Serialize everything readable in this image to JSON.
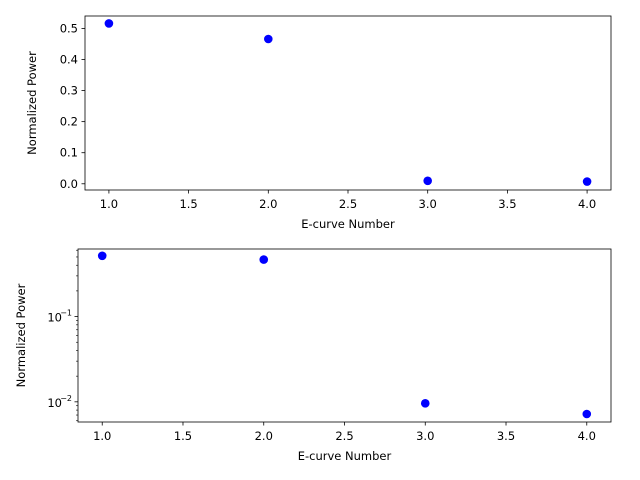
{
  "chart_data": [
    {
      "type": "scatter",
      "scale": "linear",
      "xlabel": "E-curve Number",
      "ylabel": "Normalized Power",
      "xlim": [
        0.85,
        4.15
      ],
      "ylim": [
        -0.02,
        0.54
      ],
      "x_ticks": [
        1.0,
        1.5,
        2.0,
        2.5,
        3.0,
        3.5,
        4.0
      ],
      "x_tick_labels": [
        "1.0",
        "1.5",
        "2.0",
        "2.5",
        "3.0",
        "3.5",
        "4.0"
      ],
      "y_ticks": [
        0.0,
        0.1,
        0.2,
        0.3,
        0.4,
        0.5
      ],
      "y_tick_labels": [
        "0.0",
        "0.1",
        "0.2",
        "0.3",
        "0.4",
        "0.5"
      ],
      "grid": false,
      "marker_color": "#0000ff",
      "x": [
        1,
        2,
        3,
        4
      ],
      "y": [
        0.516,
        0.466,
        0.0096,
        0.0072
      ]
    },
    {
      "type": "scatter",
      "scale": "log",
      "xlabel": "E-curve Number",
      "ylabel": "Normalized Power",
      "xlim": [
        0.85,
        4.15
      ],
      "ylim": [
        0.0058,
        0.62
      ],
      "x_ticks": [
        1.0,
        1.5,
        2.0,
        2.5,
        3.0,
        3.5,
        4.0
      ],
      "x_tick_labels": [
        "1.0",
        "1.5",
        "2.0",
        "2.5",
        "3.0",
        "3.5",
        "4.0"
      ],
      "y_major_ticks": [
        0.01,
        0.1
      ],
      "y_major_tick_labels": [
        {
          "base": "10",
          "exp": "−2"
        },
        {
          "base": "10",
          "exp": "−1"
        }
      ],
      "grid": false,
      "marker_color": "#0000ff",
      "x": [
        1,
        2,
        3,
        4
      ],
      "y": [
        0.516,
        0.466,
        0.0096,
        0.0072
      ]
    }
  ]
}
